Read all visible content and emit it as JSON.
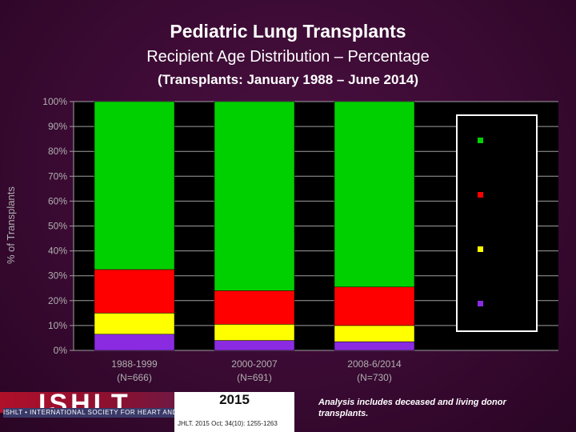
{
  "chart_data": {
    "type": "bar",
    "stacked": true,
    "title": "Pediatric Lung Transplants",
    "subtitle": "Recipient Age Distribution – Percentage",
    "subtitle2": "(Transplants: January 1988 – June 2014)",
    "ylabel": "% of Transplants",
    "ylim": [
      0,
      100
    ],
    "yticks": [
      "0%",
      "10%",
      "20%",
      "30%",
      "40%",
      "50%",
      "60%",
      "70%",
      "80%",
      "90%",
      "100%"
    ],
    "categories": [
      {
        "line1": "1988-1999",
        "line2": "(N=666)"
      },
      {
        "line1": "2000-2007",
        "line2": "(N=691)"
      },
      {
        "line1": "2008-6/2014",
        "line2": "(N=730)"
      }
    ],
    "series": [
      {
        "color": "#8a2be2",
        "values": [
          6.5,
          4,
          3.5
        ]
      },
      {
        "color": "#ffff00",
        "values": [
          8.5,
          6.5,
          6.5
        ]
      },
      {
        "color": "#ff0000",
        "values": [
          17.5,
          13.5,
          15.5
        ]
      },
      {
        "color": "#00d000",
        "values": [
          67.5,
          76,
          74.5
        ]
      }
    ],
    "legend_position": "right",
    "legend_colors": [
      "#00d000",
      "#ff0000",
      "#ffff00",
      "#8a2be2"
    ]
  },
  "footer": {
    "logo_text": "ISHLT",
    "logo_subtext": "ISHLT • INTERNATIONAL SOCIETY FOR HEART AND LUNG TRANSPLANTATION",
    "year": "2015",
    "citation": "JHLT. 2015 Oct; 34(10): 1255-1263",
    "note": "Analysis includes deceased and living donor transplants."
  }
}
